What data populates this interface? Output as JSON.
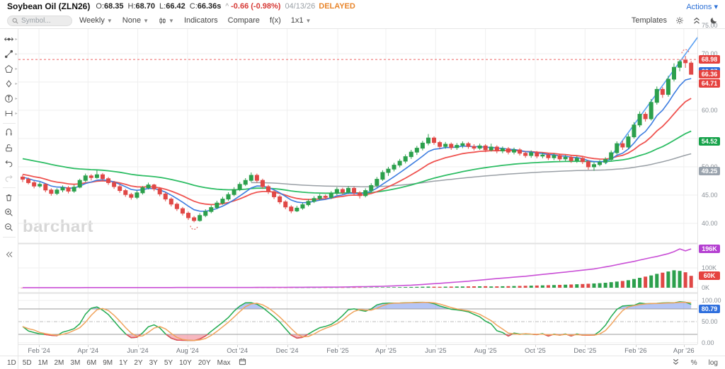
{
  "header": {
    "symbol_name": "Soybean Oil (ZLN26)",
    "open_label": "O:",
    "open": "68.35",
    "high_label": "H:",
    "high": "68.70",
    "low_label": "L:",
    "low": "66.42",
    "close_label": "C:",
    "close": "66.36s",
    "caret": "^",
    "change": "-0.66 (-0.98%)",
    "date": "04/13/26",
    "delayed": "DELAYED",
    "actions_label": "Actions ▾"
  },
  "toolbar": {
    "search_placeholder": "Symbol...",
    "period": "Weekly",
    "tools_dropdown": "None",
    "chart_type_icon": "candlestick",
    "indicators_label": "Indicators",
    "compare_label": "Compare",
    "fx_label": "f(x)",
    "grid_label": "1x1",
    "templates_label": "Templates",
    "right_icons": [
      "gear-icon",
      "expand-panels-icon",
      "dark-mode-moon-icon"
    ]
  },
  "sidebar_tools": [
    {
      "name": "cursor-tool",
      "flyout": true
    },
    {
      "name": "trendline-tool",
      "flyout": true
    },
    {
      "name": "shapes-tool",
      "flyout": true
    },
    {
      "name": "annotation-tool",
      "flyout": true
    },
    {
      "name": "info-tool",
      "flyout": true
    },
    {
      "name": "measure-tool",
      "flyout": true
    },
    {
      "name": "magnet-tool",
      "flyout": false
    },
    {
      "name": "lock-tool",
      "flyout": false
    },
    {
      "name": "undo-tool",
      "flyout": false
    },
    {
      "name": "redo-tool",
      "flyout": false,
      "disabled": true
    },
    {
      "name": "delete-tool",
      "flyout": false
    },
    {
      "name": "zoom-in-tool",
      "flyout": false
    },
    {
      "name": "zoom-out-tool",
      "flyout": false
    }
  ],
  "watermark": "barchart",
  "price_axis": {
    "ticks": [
      75.0,
      70.0,
      60.0,
      50.0,
      45.0,
      40.0
    ],
    "badges": [
      {
        "text": "68.98",
        "value": 68.98,
        "color": "#e5423f",
        "role": "prior-high-line"
      },
      {
        "text": "66.87",
        "value": 66.87,
        "color": "#2f6fdd",
        "role": "ma-fast"
      },
      {
        "text": "66.36",
        "value": 66.36,
        "color": "#e5423f",
        "role": "last-price"
      },
      {
        "text": "64.71",
        "value": 64.71,
        "color": "#e5423f",
        "role": "ma-mid"
      },
      {
        "text": "54.52",
        "value": 54.52,
        "color": "#16a24a",
        "role": "ma-slow"
      },
      {
        "text": "49.25",
        "value": 49.25,
        "color": "#9aa3ad",
        "role": "ma-long"
      }
    ]
  },
  "volume_axis": {
    "ticks": [
      "100K",
      "0K"
    ],
    "tick_values": [
      100,
      0
    ],
    "badges": [
      {
        "text": "196K",
        "value": 196,
        "color": "#b43fd1",
        "role": "open-interest"
      },
      {
        "text": "60K",
        "value": 60,
        "color": "#e5423f",
        "role": "volume"
      }
    ]
  },
  "oscillator_axis": {
    "ticks": [
      "100.00",
      "50.00",
      "0.00"
    ],
    "tick_values": [
      100,
      50,
      0
    ],
    "badges": [
      {
        "text": "",
        "value": 87,
        "color": "#f09a4b",
        "role": "stoch-d"
      },
      {
        "text": "80.79",
        "value": 80.79,
        "color": "#2f6fdd",
        "role": "stoch-k"
      }
    ]
  },
  "x_ticks": [
    {
      "label": "Feb '24",
      "week": 2.86
    },
    {
      "label": "Apr '24",
      "week": 11.43
    },
    {
      "label": "Jun '24",
      "week": 20.14
    },
    {
      "label": "Aug '24",
      "week": 28.86
    },
    {
      "label": "Oct '24",
      "week": 37.57
    },
    {
      "label": "Dec '24",
      "week": 46.29
    },
    {
      "label": "Feb '25",
      "week": 55.14
    },
    {
      "label": "Apr '25",
      "week": 63.57
    },
    {
      "label": "Jun '25",
      "week": 72.29
    },
    {
      "label": "Aug '25",
      "week": 81.0
    },
    {
      "label": "Oct '25",
      "week": 89.71
    },
    {
      "label": "Dec '25",
      "week": 98.43
    },
    {
      "label": "Feb '26",
      "week": 107.29
    },
    {
      "label": "Apr '26",
      "week": 115.71
    }
  ],
  "range_toolbar": [
    "1D",
    "5D",
    "1M",
    "2M",
    "3M",
    "6M",
    "9M",
    "1Y",
    "2Y",
    "3Y",
    "5Y",
    "10Y",
    "20Y",
    "Max"
  ],
  "bottom_right": {
    "percent_label": "%",
    "log_label": "log"
  },
  "colors": {
    "candle_up": "#2ca04c",
    "candle_down": "#e04846",
    "ma_fast": "#3d7de0",
    "ma_mid": "#ef5350",
    "ma_slow": "#2dbd64",
    "ma_long": "#9aa0a6",
    "open_interest": "#c94fd6",
    "prior_high_line": "#f38c8c",
    "trendline": "#5aa0f2",
    "stoch_k": "#22ab50",
    "stoch_d": "#f0a35c",
    "stoch_over_fill": "#5b7fe8",
    "stoch_under_fill": "#ee5f72",
    "grid": "#efefef",
    "threshold": "#9b9b9b"
  },
  "chart_data": {
    "type": "candlestick",
    "symbol": "ZLN26",
    "interval": "weekly",
    "start_date": "2024-01-12",
    "series_note": "columns per candle: [open, high, low, close, volume_K]",
    "candles": [
      [
        48.2,
        48.6,
        47.3,
        47.8,
        0.2
      ],
      [
        47.8,
        48.1,
        46.9,
        47.2,
        0.2
      ],
      [
        47.2,
        47.5,
        46.2,
        46.6,
        0.3
      ],
      [
        46.6,
        47.3,
        46.3,
        46.9,
        0.2
      ],
      [
        46.9,
        47.1,
        45.5,
        45.9,
        0.3
      ],
      [
        45.9,
        46.2,
        44.9,
        45.3,
        0.3
      ],
      [
        45.3,
        46.2,
        45.0,
        45.9,
        0.2
      ],
      [
        45.9,
        46.7,
        45.5,
        46.3,
        0.3
      ],
      [
        46.3,
        46.6,
        45.3,
        45.7,
        0.2
      ],
      [
        45.7,
        46.8,
        45.4,
        46.4,
        0.3
      ],
      [
        46.4,
        47.9,
        46.2,
        47.6,
        0.4
      ],
      [
        47.6,
        48.8,
        47.3,
        48.4,
        0.3
      ],
      [
        48.4,
        48.7,
        47.6,
        48.1,
        0.3
      ],
      [
        48.1,
        49.4,
        47.9,
        48.6,
        0.4
      ],
      [
        48.6,
        48.9,
        47.5,
        47.9,
        0.3
      ],
      [
        47.9,
        48.2,
        46.8,
        47.2,
        0.3
      ],
      [
        47.2,
        47.5,
        46.1,
        46.5,
        0.3
      ],
      [
        46.5,
        46.9,
        45.4,
        45.8,
        0.3
      ],
      [
        45.8,
        46.1,
        44.7,
        45.1,
        0.4
      ],
      [
        45.1,
        45.4,
        44.2,
        44.6,
        0.3
      ],
      [
        44.6,
        45.8,
        44.3,
        45.4,
        0.3
      ],
      [
        45.4,
        46.6,
        45.1,
        46.3,
        0.4
      ],
      [
        46.3,
        47.2,
        46.0,
        46.8,
        0.3
      ],
      [
        46.8,
        47.0,
        45.7,
        46.1,
        0.3
      ],
      [
        46.1,
        46.4,
        44.8,
        45.2,
        0.4
      ],
      [
        45.2,
        45.5,
        43.9,
        44.3,
        0.3
      ],
      [
        44.3,
        44.6,
        43.0,
        43.4,
        0.4
      ],
      [
        43.4,
        43.7,
        42.2,
        42.6,
        0.3
      ],
      [
        42.6,
        42.9,
        41.4,
        41.8,
        0.4
      ],
      [
        41.8,
        42.1,
        40.6,
        41.0,
        0.4
      ],
      [
        41.0,
        41.3,
        40.2,
        40.5,
        0.4
      ],
      [
        40.5,
        41.8,
        40.3,
        41.4,
        0.3
      ],
      [
        41.4,
        42.5,
        41.1,
        42.1,
        0.3
      ],
      [
        42.1,
        43.2,
        41.8,
        42.8,
        0.3
      ],
      [
        42.8,
        44.0,
        42.5,
        43.6,
        0.4
      ],
      [
        43.6,
        44.7,
        43.3,
        44.3,
        0.3
      ],
      [
        44.3,
        45.5,
        44.0,
        45.1,
        0.4
      ],
      [
        45.1,
        46.4,
        44.8,
        46.0,
        0.4
      ],
      [
        46.0,
        47.3,
        45.7,
        46.9,
        0.4
      ],
      [
        46.9,
        48.0,
        46.6,
        47.6,
        0.4
      ],
      [
        47.6,
        49.0,
        47.3,
        48.5,
        0.5
      ],
      [
        48.5,
        48.8,
        47.2,
        47.6,
        0.4
      ],
      [
        47.6,
        47.9,
        46.1,
        46.5,
        0.4
      ],
      [
        46.5,
        46.8,
        45.2,
        45.6,
        0.4
      ],
      [
        45.6,
        45.9,
        44.3,
        44.7,
        0.4
      ],
      [
        44.7,
        45.0,
        43.4,
        43.8,
        0.5
      ],
      [
        43.8,
        44.1,
        42.5,
        42.9,
        0.5
      ],
      [
        42.9,
        43.2,
        41.8,
        42.2,
        0.6
      ],
      [
        42.2,
        43.1,
        42.0,
        42.7,
        0.5
      ],
      [
        42.7,
        43.7,
        42.4,
        43.3,
        0.6
      ],
      [
        43.3,
        44.3,
        43.0,
        43.9,
        0.7
      ],
      [
        43.9,
        44.8,
        43.6,
        44.4,
        0.7
      ],
      [
        44.4,
        45.2,
        44.1,
        44.8,
        0.8
      ],
      [
        44.8,
        45.1,
        44.2,
        44.6,
        0.8
      ],
      [
        44.6,
        45.7,
        44.3,
        45.3,
        0.9
      ],
      [
        45.3,
        46.4,
        45.0,
        46.0,
        1.0
      ],
      [
        46.0,
        46.3,
        45.1,
        45.5,
        1.0
      ],
      [
        45.5,
        46.6,
        45.2,
        46.2,
        1.1
      ],
      [
        46.2,
        46.5,
        45.0,
        45.4,
        1.2
      ],
      [
        45.4,
        45.7,
        44.4,
        44.9,
        1.4
      ],
      [
        44.9,
        46.2,
        44.6,
        45.8,
        1.5
      ],
      [
        45.8,
        47.1,
        45.5,
        46.7,
        1.7
      ],
      [
        46.7,
        48.2,
        46.4,
        47.8,
        1.9
      ],
      [
        47.8,
        49.4,
        47.5,
        49.0,
        2.2
      ],
      [
        49.0,
        50.0,
        48.4,
        49.6,
        2.4
      ],
      [
        49.6,
        50.7,
        49.2,
        50.3,
        2.6
      ],
      [
        50.3,
        51.4,
        49.9,
        51.0,
        3.0
      ],
      [
        51.0,
        52.2,
        50.6,
        51.8,
        3.4
      ],
      [
        51.8,
        53.0,
        51.4,
        52.6,
        3.8
      ],
      [
        52.6,
        53.7,
        52.1,
        53.3,
        4.2
      ],
      [
        53.3,
        54.6,
        52.9,
        54.2,
        4.8
      ],
      [
        54.2,
        55.8,
        53.8,
        55.1,
        5.4
      ],
      [
        55.1,
        55.4,
        53.9,
        54.3,
        5.0
      ],
      [
        54.3,
        54.6,
        53.1,
        53.6,
        4.6
      ],
      [
        53.6,
        54.4,
        53.2,
        54.0,
        5.2
      ],
      [
        54.0,
        54.3,
        53.0,
        53.4,
        5.6
      ],
      [
        53.4,
        54.2,
        53.0,
        53.8,
        6.0
      ],
      [
        53.8,
        54.5,
        53.3,
        54.1,
        6.2
      ],
      [
        54.1,
        54.4,
        53.2,
        53.6,
        6.6
      ],
      [
        53.6,
        54.0,
        52.9,
        53.3,
        7.0
      ],
      [
        53.3,
        54.1,
        53.0,
        53.7,
        7.2
      ],
      [
        53.7,
        54.0,
        52.6,
        53.0,
        7.6
      ],
      [
        53.0,
        54.1,
        52.7,
        53.5,
        6.4
      ],
      [
        53.5,
        53.8,
        52.4,
        52.8,
        6.8
      ],
      [
        52.8,
        53.6,
        52.4,
        53.2,
        7.4
      ],
      [
        53.2,
        53.5,
        52.2,
        52.6,
        7.8
      ],
      [
        52.6,
        53.4,
        52.2,
        53.0,
        8.4
      ],
      [
        53.0,
        53.3,
        52.0,
        52.4,
        9.0
      ],
      [
        52.4,
        52.7,
        51.6,
        52.0,
        9.6
      ],
      [
        52.0,
        52.9,
        51.6,
        52.5,
        10.4
      ],
      [
        52.5,
        52.8,
        51.5,
        51.9,
        11.0
      ],
      [
        51.9,
        52.5,
        51.5,
        52.1,
        11.8
      ],
      [
        52.1,
        52.4,
        51.2,
        51.6,
        12.6
      ],
      [
        51.6,
        52.4,
        51.2,
        52.0,
        13.4
      ],
      [
        52.0,
        52.3,
        51.0,
        51.4,
        14.2
      ],
      [
        51.4,
        52.1,
        51.0,
        51.7,
        15.2
      ],
      [
        51.7,
        52.0,
        50.7,
        51.1,
        16.2
      ],
      [
        51.1,
        51.9,
        50.7,
        51.5,
        17.4
      ],
      [
        51.5,
        51.8,
        50.5,
        50.9,
        18.6
      ],
      [
        50.9,
        51.2,
        49.5,
        50.0,
        20.0
      ],
      [
        50.0,
        50.8,
        49.3,
        50.4,
        21.5
      ],
      [
        50.4,
        51.2,
        50.1,
        50.8,
        23.0
      ],
      [
        50.8,
        51.7,
        50.5,
        51.3,
        25.0
      ],
      [
        51.3,
        52.9,
        51.0,
        52.5,
        28.0
      ],
      [
        52.5,
        54.5,
        52.2,
        54.1,
        31.0
      ],
      [
        54.1,
        54.6,
        53.0,
        53.5,
        34.0
      ],
      [
        53.5,
        55.8,
        53.2,
        55.3,
        38.0
      ],
      [
        55.3,
        57.9,
        55.0,
        57.4,
        44.0
      ],
      [
        57.4,
        59.8,
        57.0,
        59.3,
        50.0
      ],
      [
        59.3,
        59.7,
        58.0,
        58.5,
        56.0
      ],
      [
        58.5,
        62.0,
        58.2,
        61.4,
        62.0
      ],
      [
        61.4,
        64.2,
        61.0,
        63.7,
        70.0
      ],
      [
        63.7,
        64.1,
        62.2,
        62.8,
        76.0
      ],
      [
        62.8,
        66.1,
        62.4,
        65.5,
        82.0
      ],
      [
        65.5,
        68.3,
        65.1,
        67.6,
        88.0
      ],
      [
        67.6,
        68.98,
        66.9,
        68.6,
        85.0
      ],
      [
        68.9,
        69.6,
        67.5,
        68.4,
        78.0
      ],
      [
        68.35,
        68.7,
        66.42,
        66.36,
        60.0
      ]
    ],
    "open_interest_anchors_K": [
      [
        0,
        0.3
      ],
      [
        40,
        1.2
      ],
      [
        55,
        3
      ],
      [
        63,
        7
      ],
      [
        68,
        13
      ],
      [
        73,
        22
      ],
      [
        78,
        33
      ],
      [
        83,
        46
      ],
      [
        88,
        58
      ],
      [
        92,
        70
      ],
      [
        96,
        82
      ],
      [
        100,
        95
      ],
      [
        103,
        110
      ],
      [
        105,
        122
      ],
      [
        107,
        133
      ],
      [
        109,
        146
      ],
      [
        111,
        158
      ],
      [
        113,
        172
      ],
      [
        114,
        182
      ],
      [
        115,
        196
      ],
      [
        116,
        186
      ],
      [
        117,
        196
      ]
    ],
    "overlays": {
      "prior_high_line_value": 68.98,
      "cycle_low_marker_week": 30,
      "cycle_high_marker_week": 116,
      "trendline_points_week_price": [
        [
          102,
          50.5
        ],
        [
          120,
          75.5
        ]
      ]
    },
    "indicators": {
      "moving_averages": [
        {
          "name": "ma-fast-blue",
          "period": 7,
          "end_value": 66.87
        },
        {
          "name": "ma-mid-red",
          "period": 15,
          "end_value": 64.71
        },
        {
          "name": "ma-slow-green",
          "period": 45,
          "end_value": 54.52
        },
        {
          "name": "ma-long-gray",
          "period": 110,
          "start_week": 40,
          "end_value": 49.25
        }
      ],
      "stochastic": {
        "k_period": 14,
        "k_smooth": 3,
        "d_period": 3,
        "overbought": 80,
        "oversold": 20,
        "k_end_value": 80.79
      }
    },
    "ylim_price": [
      36.6,
      74.9
    ],
    "ylim_volume_K": [
      0,
      235
    ],
    "ylim_oscillator": [
      0,
      100
    ],
    "legend_position": "none",
    "grid": true
  }
}
